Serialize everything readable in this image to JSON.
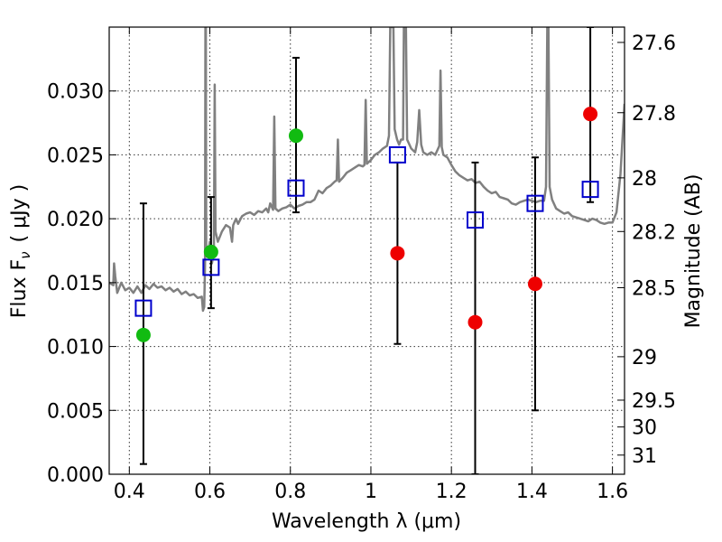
{
  "chart_data": {
    "type": "scatter",
    "xlabel": "Wavelength  λ (μm)",
    "ylabel": "Flux  F",
    "ylabel_subscript": "ν",
    "ylabel_unit": "( μJy )",
    "ylabel_right": "Magnitude (AB)",
    "xlim": [
      0.35,
      1.63
    ],
    "ylim": [
      0.0,
      0.035
    ],
    "x_ticks": [
      0.4,
      0.6,
      0.8,
      1.0,
      1.2,
      1.4,
      1.6
    ],
    "x_tick_labels": [
      "0.4",
      "0.6",
      "0.8",
      "1",
      "1.2",
      "1.4",
      "1.6"
    ],
    "y_ticks": [
      0.0,
      0.005,
      0.01,
      0.015,
      0.02,
      0.025,
      0.03
    ],
    "y_tick_labels": [
      "0.000",
      "0.005",
      "0.010",
      "0.015",
      "0.020",
      "0.025",
      "0.030"
    ],
    "right_ticks_flux": [
      0.0338,
      0.0283,
      0.0232,
      0.019,
      0.0146,
      0.0092,
      0.0058,
      0.0037,
      0.0015
    ],
    "right_tick_labels": [
      "27.6",
      "27.8",
      "28",
      "28.2",
      "28.5",
      "29",
      "29.5",
      "30",
      "31"
    ],
    "grid": true,
    "colors": {
      "spectrum": "#808080",
      "model_marker": "#0000cc",
      "green_points": "#11bb11",
      "red_points": "#ee0000",
      "error_bar": "#000000"
    },
    "series": [
      {
        "marker": "open-square",
        "color": "#0000cc",
        "points": [
          {
            "x": 0.435,
            "y": 0.013
          },
          {
            "x": 0.603,
            "y": 0.0162
          },
          {
            "x": 0.814,
            "y": 0.0224
          },
          {
            "x": 1.066,
            "y": 0.025
          },
          {
            "x": 1.259,
            "y": 0.0199
          },
          {
            "x": 1.408,
            "y": 0.0212
          },
          {
            "x": 1.545,
            "y": 0.0223
          }
        ]
      },
      {
        "marker": "filled-circle",
        "color": "#11bb11",
        "points": [
          {
            "x": 0.435,
            "y": 0.0109,
            "err_low": 0.0008,
            "err_high": 0.0212
          },
          {
            "x": 0.603,
            "y": 0.0174,
            "err_low": 0.013,
            "err_high": 0.0217
          },
          {
            "x": 0.814,
            "y": 0.0265,
            "err_low": 0.0205,
            "err_high": 0.0326
          }
        ]
      },
      {
        "marker": "filled-circle",
        "color": "#ee0000",
        "points": [
          {
            "x": 1.066,
            "y": 0.0173,
            "err_low": 0.0102,
            "err_high": 0.0244
          },
          {
            "x": 1.259,
            "y": 0.0119,
            "err_low": 0.0,
            "err_high": 0.0244
          },
          {
            "x": 1.408,
            "y": 0.0149,
            "err_low": 0.005,
            "err_high": 0.0248
          },
          {
            "x": 1.545,
            "y": 0.0282,
            "err_low": 0.0213,
            "err_high": 0.035
          }
        ]
      }
    ],
    "spectrum": {
      "color": "#808080",
      "points": [
        [
          0.35,
          0.015
        ],
        [
          0.36,
          0.0148
        ],
        [
          0.362,
          0.0165
        ],
        [
          0.365,
          0.0155
        ],
        [
          0.37,
          0.0142
        ],
        [
          0.38,
          0.015
        ],
        [
          0.39,
          0.0144
        ],
        [
          0.4,
          0.0146
        ],
        [
          0.41,
          0.0142
        ],
        [
          0.42,
          0.0147
        ],
        [
          0.43,
          0.0142
        ],
        [
          0.44,
          0.0148
        ],
        [
          0.45,
          0.0145
        ],
        [
          0.46,
          0.0149
        ],
        [
          0.47,
          0.0146
        ],
        [
          0.48,
          0.0147
        ],
        [
          0.49,
          0.0144
        ],
        [
          0.5,
          0.0146
        ],
        [
          0.51,
          0.0143
        ],
        [
          0.52,
          0.0145
        ],
        [
          0.53,
          0.0141
        ],
        [
          0.54,
          0.0143
        ],
        [
          0.55,
          0.014
        ],
        [
          0.56,
          0.0141
        ],
        [
          0.57,
          0.0138
        ],
        [
          0.58,
          0.0139
        ],
        [
          0.583,
          0.0128
        ],
        [
          0.586,
          0.0131
        ],
        [
          0.588,
          0.0165
        ],
        [
          0.589,
          0.035
        ],
        [
          0.59,
          0.035
        ],
        [
          0.591,
          0.0175
        ],
        [
          0.595,
          0.017
        ],
        [
          0.6,
          0.0182
        ],
        [
          0.605,
          0.0165
        ],
        [
          0.61,
          0.0175
        ],
        [
          0.612,
          0.0305
        ],
        [
          0.614,
          0.019
        ],
        [
          0.62,
          0.0182
        ],
        [
          0.63,
          0.019
        ],
        [
          0.64,
          0.0195
        ],
        [
          0.65,
          0.0193
        ],
        [
          0.655,
          0.0182
        ],
        [
          0.658,
          0.0195
        ],
        [
          0.665,
          0.02
        ],
        [
          0.67,
          0.0196
        ],
        [
          0.68,
          0.0202
        ],
        [
          0.69,
          0.0204
        ],
        [
          0.7,
          0.0205
        ],
        [
          0.71,
          0.0203
        ],
        [
          0.72,
          0.0206
        ],
        [
          0.73,
          0.0205
        ],
        [
          0.74,
          0.0208
        ],
        [
          0.745,
          0.0205
        ],
        [
          0.75,
          0.0212
        ],
        [
          0.757,
          0.0207
        ],
        [
          0.76,
          0.028
        ],
        [
          0.763,
          0.0208
        ],
        [
          0.77,
          0.0206
        ],
        [
          0.78,
          0.0208
        ],
        [
          0.79,
          0.0209
        ],
        [
          0.8,
          0.0211
        ],
        [
          0.81,
          0.0208
        ],
        [
          0.82,
          0.021
        ],
        [
          0.83,
          0.0211
        ],
        [
          0.84,
          0.0213
        ],
        [
          0.85,
          0.0213
        ],
        [
          0.86,
          0.0215
        ],
        [
          0.87,
          0.0222
        ],
        [
          0.88,
          0.022
        ],
        [
          0.89,
          0.0224
        ],
        [
          0.9,
          0.0226
        ],
        [
          0.91,
          0.0229
        ],
        [
          0.915,
          0.023
        ],
        [
          0.918,
          0.0262
        ],
        [
          0.921,
          0.0229
        ],
        [
          0.93,
          0.0232
        ],
        [
          0.94,
          0.0236
        ],
        [
          0.95,
          0.0238
        ],
        [
          0.96,
          0.024
        ],
        [
          0.97,
          0.0242
        ],
        [
          0.98,
          0.0241
        ],
        [
          0.984,
          0.0242
        ],
        [
          0.987,
          0.0293
        ],
        [
          0.99,
          0.0243
        ],
        [
          1.0,
          0.0246
        ],
        [
          1.01,
          0.025
        ],
        [
          1.02,
          0.0252
        ],
        [
          1.03,
          0.0255
        ],
        [
          1.04,
          0.0257
        ],
        [
          1.045,
          0.0265
        ],
        [
          1.048,
          0.035
        ],
        [
          1.056,
          0.035
        ],
        [
          1.059,
          0.027
        ],
        [
          1.065,
          0.0262
        ],
        [
          1.07,
          0.0258
        ],
        [
          1.075,
          0.0262
        ],
        [
          1.08,
          0.0262
        ],
        [
          1.082,
          0.035
        ],
        [
          1.087,
          0.035
        ],
        [
          1.09,
          0.0262
        ],
        [
          1.1,
          0.0255
        ],
        [
          1.11,
          0.0252
        ],
        [
          1.115,
          0.026
        ],
        [
          1.12,
          0.0285
        ],
        [
          1.125,
          0.0258
        ],
        [
          1.13,
          0.0252
        ],
        [
          1.14,
          0.025
        ],
        [
          1.15,
          0.0252
        ],
        [
          1.16,
          0.025
        ],
        [
          1.17,
          0.0257
        ],
        [
          1.173,
          0.0316
        ],
        [
          1.176,
          0.0256
        ],
        [
          1.18,
          0.025
        ],
        [
          1.19,
          0.0248
        ],
        [
          1.2,
          0.0242
        ],
        [
          1.21,
          0.0237
        ],
        [
          1.22,
          0.0234
        ],
        [
          1.23,
          0.0232
        ],
        [
          1.24,
          0.023
        ],
        [
          1.25,
          0.0231
        ],
        [
          1.26,
          0.0228
        ],
        [
          1.27,
          0.0229
        ],
        [
          1.28,
          0.0225
        ],
        [
          1.29,
          0.0222
        ],
        [
          1.3,
          0.022
        ],
        [
          1.31,
          0.0221
        ],
        [
          1.32,
          0.0217
        ],
        [
          1.33,
          0.0216
        ],
        [
          1.34,
          0.0215
        ],
        [
          1.35,
          0.0212
        ],
        [
          1.36,
          0.0211
        ],
        [
          1.37,
          0.0213
        ],
        [
          1.38,
          0.0214
        ],
        [
          1.39,
          0.0215
        ],
        [
          1.4,
          0.0214
        ],
        [
          1.41,
          0.0213
        ],
        [
          1.42,
          0.0214
        ],
        [
          1.43,
          0.0214
        ],
        [
          1.435,
          0.0225
        ],
        [
          1.438,
          0.035
        ],
        [
          1.441,
          0.035
        ],
        [
          1.444,
          0.0225
        ],
        [
          1.45,
          0.0215
        ],
        [
          1.46,
          0.0208
        ],
        [
          1.47,
          0.0206
        ],
        [
          1.48,
          0.0204
        ],
        [
          1.49,
          0.0205
        ],
        [
          1.5,
          0.0202
        ],
        [
          1.51,
          0.0201
        ],
        [
          1.52,
          0.02
        ],
        [
          1.53,
          0.0199
        ],
        [
          1.54,
          0.0198
        ],
        [
          1.55,
          0.02
        ],
        [
          1.56,
          0.0199
        ],
        [
          1.57,
          0.0197
        ],
        [
          1.58,
          0.0196
        ],
        [
          1.59,
          0.0197
        ],
        [
          1.6,
          0.0197
        ],
        [
          1.61,
          0.0205
        ],
        [
          1.62,
          0.0235
        ],
        [
          1.63,
          0.029
        ]
      ]
    }
  }
}
